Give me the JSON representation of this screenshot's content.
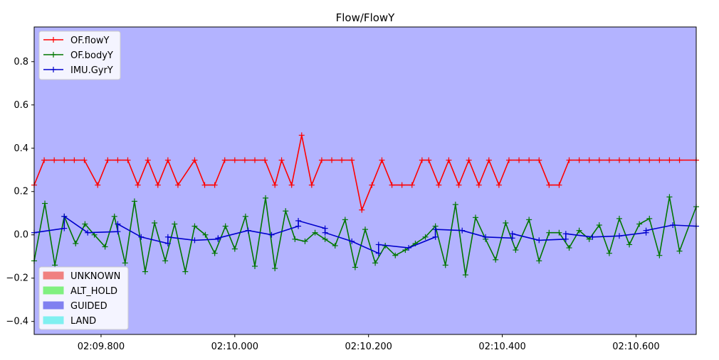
{
  "chart_data": {
    "type": "line",
    "title": "Flow/FlowY",
    "xlabel": "",
    "ylabel": "",
    "xlim": [
      9.7,
      10.69
    ],
    "ylim": [
      -0.46,
      0.96
    ],
    "yticks": [
      -0.4,
      -0.2,
      0.0,
      0.2,
      0.4,
      0.6,
      0.8
    ],
    "ytick_labels": [
      "−0.4",
      "−0.2",
      "0.0",
      "0.2",
      "0.4",
      "0.6",
      "0.8"
    ],
    "xticks": [
      9.8,
      10.0,
      10.2,
      10.4,
      10.6
    ],
    "xtick_labels": [
      "02:09.800",
      "02:10.000",
      "02:10.200",
      "02:10.400",
      "02:10.600"
    ],
    "background_mode": "GUIDED",
    "series": [
      {
        "name": "OF.flowY",
        "color": "#ff0000",
        "points": [
          [
            9.7,
            0.23
          ],
          [
            9.715,
            0.345
          ],
          [
            9.73,
            0.345
          ],
          [
            9.745,
            0.345
          ],
          [
            9.76,
            0.345
          ],
          [
            9.775,
            0.345
          ],
          [
            9.795,
            0.23
          ],
          [
            9.81,
            0.345
          ],
          [
            9.825,
            0.345
          ],
          [
            9.84,
            0.345
          ],
          [
            9.855,
            0.23
          ],
          [
            9.87,
            0.345
          ],
          [
            9.885,
            0.23
          ],
          [
            9.9,
            0.345
          ],
          [
            9.915,
            0.23
          ],
          [
            9.94,
            0.345
          ],
          [
            9.955,
            0.23
          ],
          [
            9.97,
            0.23
          ],
          [
            9.985,
            0.345
          ],
          [
            10.0,
            0.345
          ],
          [
            10.015,
            0.345
          ],
          [
            10.03,
            0.345
          ],
          [
            10.045,
            0.345
          ],
          [
            10.06,
            0.23
          ],
          [
            10.07,
            0.345
          ],
          [
            10.085,
            0.23
          ],
          [
            10.1,
            0.46
          ],
          [
            10.115,
            0.23
          ],
          [
            10.13,
            0.345
          ],
          [
            10.145,
            0.345
          ],
          [
            10.16,
            0.345
          ],
          [
            10.175,
            0.345
          ],
          [
            10.19,
            0.115
          ],
          [
            10.205,
            0.23
          ],
          [
            10.22,
            0.345
          ],
          [
            10.235,
            0.23
          ],
          [
            10.25,
            0.23
          ],
          [
            10.265,
            0.23
          ],
          [
            10.28,
            0.345
          ],
          [
            10.29,
            0.345
          ],
          [
            10.305,
            0.23
          ],
          [
            10.32,
            0.345
          ],
          [
            10.335,
            0.23
          ],
          [
            10.35,
            0.345
          ],
          [
            10.365,
            0.23
          ],
          [
            10.38,
            0.345
          ],
          [
            10.395,
            0.23
          ],
          [
            10.41,
            0.345
          ],
          [
            10.425,
            0.345
          ],
          [
            10.44,
            0.345
          ],
          [
            10.455,
            0.345
          ],
          [
            10.47,
            0.23
          ],
          [
            10.485,
            0.23
          ],
          [
            10.5,
            0.345
          ],
          [
            10.515,
            0.345
          ],
          [
            10.53,
            0.345
          ],
          [
            10.545,
            0.345
          ],
          [
            10.56,
            0.345
          ],
          [
            10.575,
            0.345
          ],
          [
            10.59,
            0.345
          ],
          [
            10.605,
            0.345
          ],
          [
            10.62,
            0.345
          ],
          [
            10.635,
            0.345
          ],
          [
            10.65,
            0.345
          ],
          [
            10.665,
            0.345
          ],
          [
            10.69,
            0.345
          ]
        ]
      },
      {
        "name": "OF.bodyY",
        "color": "#007700",
        "points": [
          [
            9.7,
            -0.12
          ],
          [
            9.716,
            0.145
          ],
          [
            9.731,
            -0.14
          ],
          [
            9.745,
            0.085
          ],
          [
            9.762,
            -0.04
          ],
          [
            9.776,
            0.05
          ],
          [
            9.79,
            0.0
          ],
          [
            9.806,
            -0.055
          ],
          [
            9.82,
            0.085
          ],
          [
            9.836,
            -0.13
          ],
          [
            9.85,
            0.155
          ],
          [
            9.866,
            -0.17
          ],
          [
            9.88,
            0.055
          ],
          [
            9.896,
            -0.12
          ],
          [
            9.91,
            0.05
          ],
          [
            9.926,
            -0.17
          ],
          [
            9.94,
            0.04
          ],
          [
            9.956,
            0.0
          ],
          [
            9.97,
            -0.085
          ],
          [
            9.986,
            0.04
          ],
          [
            10.0,
            -0.065
          ],
          [
            10.016,
            0.085
          ],
          [
            10.03,
            -0.145
          ],
          [
            10.046,
            0.17
          ],
          [
            10.06,
            -0.155
          ],
          [
            10.076,
            0.11
          ],
          [
            10.09,
            -0.02
          ],
          [
            10.105,
            -0.03
          ],
          [
            10.12,
            0.01
          ],
          [
            10.135,
            -0.02
          ],
          [
            10.15,
            -0.05
          ],
          [
            10.165,
            0.07
          ],
          [
            10.18,
            -0.15
          ],
          [
            10.195,
            0.025
          ],
          [
            10.21,
            -0.13
          ],
          [
            10.225,
            -0.05
          ],
          [
            10.24,
            -0.095
          ],
          [
            10.255,
            -0.07
          ],
          [
            10.27,
            -0.04
          ],
          [
            10.285,
            -0.01
          ],
          [
            10.3,
            0.04
          ],
          [
            10.315,
            -0.14
          ],
          [
            10.33,
            0.14
          ],
          [
            10.345,
            -0.185
          ],
          [
            10.36,
            0.08
          ],
          [
            10.375,
            -0.02
          ],
          [
            10.39,
            -0.115
          ],
          [
            10.405,
            0.055
          ],
          [
            10.42,
            -0.07
          ],
          [
            10.44,
            0.07
          ],
          [
            10.455,
            -0.12
          ],
          [
            10.47,
            0.01
          ],
          [
            10.485,
            0.01
          ],
          [
            10.5,
            -0.06
          ],
          [
            10.515,
            0.02
          ],
          [
            10.53,
            -0.02
          ],
          [
            10.545,
            0.045
          ],
          [
            10.56,
            -0.085
          ],
          [
            10.575,
            0.075
          ],
          [
            10.59,
            -0.045
          ],
          [
            10.605,
            0.05
          ],
          [
            10.62,
            0.075
          ],
          [
            10.635,
            -0.095
          ],
          [
            10.65,
            0.175
          ],
          [
            10.665,
            -0.075
          ],
          [
            10.69,
            0.13
          ]
        ]
      },
      {
        "name": "IMU.GyrY",
        "color": "#0000cc",
        "points": [
          [
            9.7,
            0.01
          ],
          [
            9.745,
            0.03
          ],
          [
            9.745,
            0.085
          ],
          [
            9.78,
            0.01
          ],
          [
            9.825,
            0.015
          ],
          [
            9.825,
            0.05
          ],
          [
            9.86,
            -0.01
          ],
          [
            9.9,
            -0.04
          ],
          [
            9.9,
            -0.01
          ],
          [
            9.94,
            -0.025
          ],
          [
            9.975,
            -0.02
          ],
          [
            9.975,
            -0.015
          ],
          [
            10.02,
            0.02
          ],
          [
            10.055,
            0.0
          ],
          [
            10.095,
            0.04
          ],
          [
            10.095,
            0.065
          ],
          [
            10.135,
            0.03
          ],
          [
            10.135,
            0.01
          ],
          [
            10.175,
            -0.03
          ],
          [
            10.215,
            -0.085
          ],
          [
            10.215,
            -0.045
          ],
          [
            10.26,
            -0.06
          ],
          [
            10.3,
            -0.01
          ],
          [
            10.3,
            0.025
          ],
          [
            10.34,
            0.02
          ],
          [
            10.375,
            -0.01
          ],
          [
            10.415,
            -0.015
          ],
          [
            10.415,
            0.005
          ],
          [
            10.455,
            -0.025
          ],
          [
            10.495,
            -0.02
          ],
          [
            10.495,
            0.005
          ],
          [
            10.535,
            -0.01
          ],
          [
            10.575,
            -0.005
          ],
          [
            10.615,
            0.01
          ],
          [
            10.615,
            0.02
          ],
          [
            10.655,
            0.045
          ],
          [
            10.69,
            0.04
          ]
        ]
      }
    ],
    "legend_series": {
      "placement": "top-left",
      "entries": [
        "OF.flowY",
        "OF.bodyY",
        "IMU.GyrY"
      ]
    },
    "legend_modes": {
      "placement": "bottom-left",
      "entries": [
        {
          "label": "UNKNOWN",
          "color": "#f08080"
        },
        {
          "label": "ALT_HOLD",
          "color": "#80f080"
        },
        {
          "label": "GUIDED",
          "color": "#8080f0"
        },
        {
          "label": "LAND",
          "color": "#80f0f0"
        }
      ]
    }
  }
}
